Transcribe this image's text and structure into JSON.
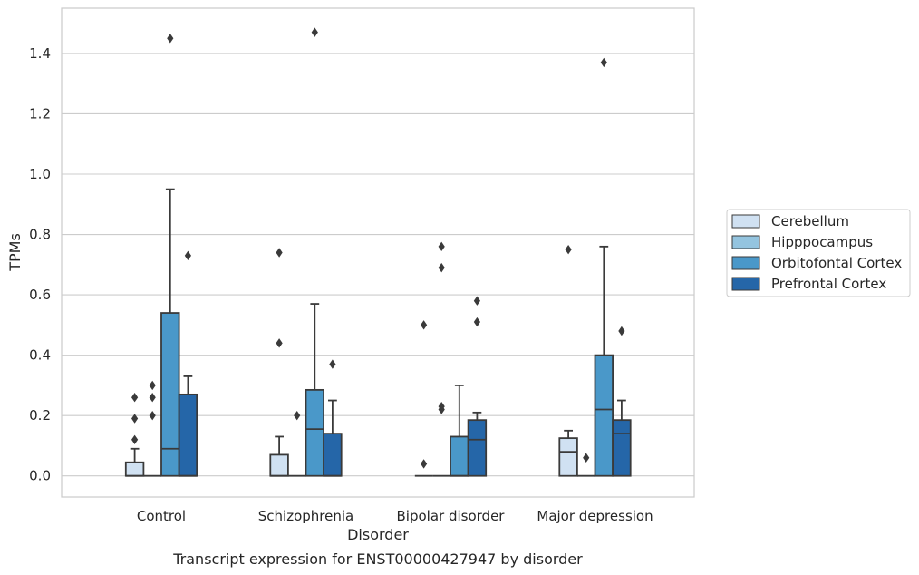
{
  "chart_data": {
    "type": "box",
    "title": "Transcript expression for ENST00000427947 by disorder",
    "xlabel": "Disorder",
    "ylabel": "TPMs",
    "ylim": [
      -0.07,
      1.55
    ],
    "yticks": [
      0.0,
      0.2,
      0.4,
      0.6,
      0.8,
      1.0,
      1.2,
      1.4
    ],
    "ytick_labels": [
      "0.0",
      "0.2",
      "0.4",
      "0.6",
      "0.8",
      "1.0",
      "1.2",
      "1.4"
    ],
    "grid": "horizontal",
    "legend_position": "right",
    "categories": [
      "Control",
      "Schizophrenia",
      "Bipolar disorder",
      "Major depression"
    ],
    "series": [
      {
        "name": "Cerebellum",
        "color": "#d0e1f2",
        "boxes": [
          {
            "whisker_low": 0.0,
            "q1": 0.0,
            "median": 0.0,
            "q3": 0.045,
            "whisker_high": 0.09,
            "outliers": [
              0.12,
              0.19,
              0.26
            ]
          },
          {
            "whisker_low": 0.0,
            "q1": 0.0,
            "median": 0.0,
            "q3": 0.07,
            "whisker_high": 0.13,
            "outliers": [
              0.44,
              0.74
            ]
          },
          {
            "whisker_low": 0.0,
            "q1": 0.0,
            "median": 0.0,
            "q3": 0.0,
            "whisker_high": 0.0,
            "outliers": [
              0.04,
              0.5
            ]
          },
          {
            "whisker_low": 0.0,
            "q1": 0.0,
            "median": 0.08,
            "q3": 0.125,
            "whisker_high": 0.15,
            "outliers": [
              0.75
            ]
          }
        ]
      },
      {
        "name": "Hipppocampus",
        "color": "#94c4df",
        "boxes": [
          {
            "whisker_low": 0.0,
            "q1": 0.0,
            "median": 0.0,
            "q3": 0.0,
            "whisker_high": 0.0,
            "outliers": [
              0.2,
              0.26,
              0.3
            ]
          },
          {
            "whisker_low": 0.0,
            "q1": 0.0,
            "median": 0.0,
            "q3": 0.0,
            "whisker_high": 0.0,
            "outliers": [
              0.2
            ]
          },
          {
            "whisker_low": 0.0,
            "q1": 0.0,
            "median": 0.0,
            "q3": 0.0,
            "whisker_high": 0.0,
            "outliers": [
              0.22,
              0.23,
              0.69,
              0.76
            ]
          },
          {
            "whisker_low": 0.0,
            "q1": 0.0,
            "median": 0.0,
            "q3": 0.0,
            "whisker_high": 0.0,
            "outliers": [
              0.06
            ]
          }
        ]
      },
      {
        "name": "Orbitofontal Cortex",
        "color": "#4a98c9",
        "boxes": [
          {
            "whisker_low": 0.0,
            "q1": 0.0,
            "median": 0.09,
            "q3": 0.54,
            "whisker_high": 0.95,
            "outliers": [
              1.45
            ]
          },
          {
            "whisker_low": 0.0,
            "q1": 0.0,
            "median": 0.155,
            "q3": 0.285,
            "whisker_high": 0.57,
            "outliers": [
              1.47
            ]
          },
          {
            "whisker_low": 0.0,
            "q1": 0.0,
            "median": 0.0,
            "q3": 0.13,
            "whisker_high": 0.3,
            "outliers": []
          },
          {
            "whisker_low": 0.0,
            "q1": 0.0,
            "median": 0.22,
            "q3": 0.4,
            "whisker_high": 0.76,
            "outliers": [
              1.37
            ]
          }
        ]
      },
      {
        "name": "Prefrontal Cortex",
        "color": "#2566a8",
        "boxes": [
          {
            "whisker_low": 0.0,
            "q1": 0.0,
            "median": 0.0,
            "q3": 0.27,
            "whisker_high": 0.33,
            "outliers": [
              0.73
            ]
          },
          {
            "whisker_low": 0.0,
            "q1": 0.0,
            "median": 0.0,
            "q3": 0.14,
            "whisker_high": 0.25,
            "outliers": [
              0.37
            ]
          },
          {
            "whisker_low": 0.0,
            "q1": 0.0,
            "median": 0.12,
            "q3": 0.185,
            "whisker_high": 0.21,
            "outliers": [
              0.51,
              0.58
            ]
          },
          {
            "whisker_low": 0.0,
            "q1": 0.0,
            "median": 0.14,
            "q3": 0.185,
            "whisker_high": 0.25,
            "outliers": [
              0.48
            ]
          }
        ]
      }
    ]
  }
}
